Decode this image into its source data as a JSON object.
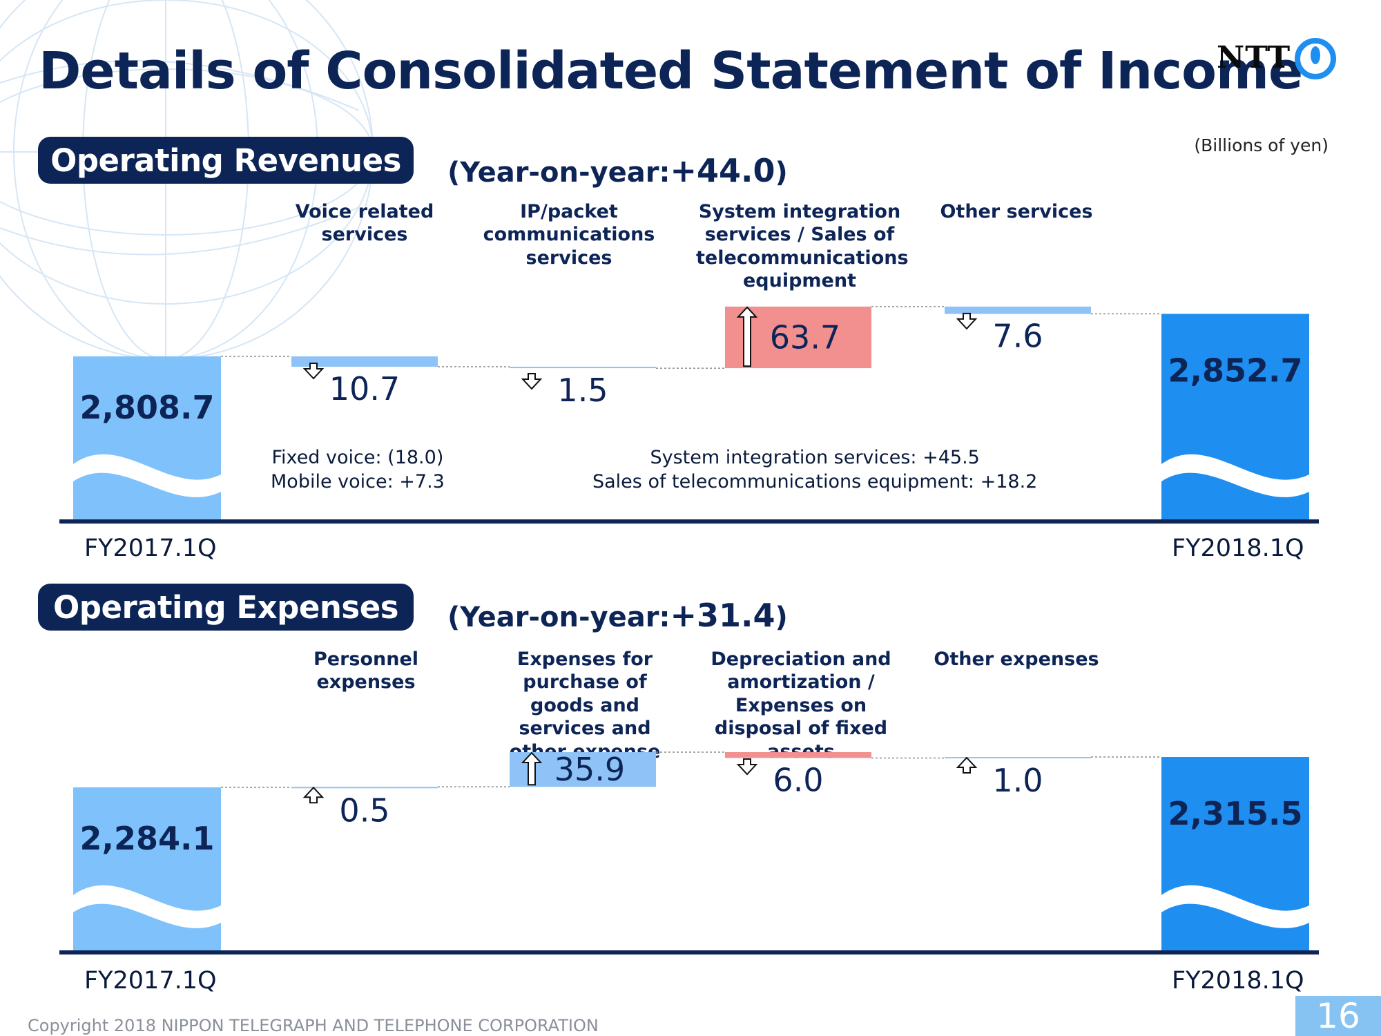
{
  "title": "Details of Consolidated Statement of Income",
  "logo_text": "NTT",
  "unit": "(Billions of yen)",
  "page_number": "16",
  "copyright": "Copyright 2018 NIPPON TELEGRAPH AND TELEPHONE CORPORATION",
  "colors": {
    "navy": "#0d2456",
    "light_blue": "#8fc3f7",
    "bar_blue": "#7fc2fb",
    "bar_blue_dark": "#1e8ef0",
    "increase_red": "#f28f8f"
  },
  "revenues": {
    "label": "Operating Revenues",
    "yoy_prefix": "(Year-on-year:",
    "yoy_value": "+44.0",
    "yoy_suffix": ")",
    "notes_left": [
      "Fixed voice: (18.0)",
      "Mobile voice: +7.3"
    ],
    "notes_right": [
      "System integration services: +45.5",
      "Sales of telecommunications equipment: +18.2"
    ]
  },
  "expenses": {
    "label": "Operating Expenses",
    "yoy_prefix": "(Year-on-year:",
    "yoy_value": "+31.4",
    "yoy_suffix": ")"
  },
  "chart_data": [
    {
      "type": "bar",
      "subtype": "waterfall",
      "title": "Operating Revenues",
      "categories": [
        "FY2017.1Q",
        "Voice related services",
        "IP/packet communications services",
        "System integration services / Sales of telecommunications equipment",
        "Other services",
        "FY2018.1Q"
      ],
      "start": {
        "label": "FY2017.1Q",
        "value": 2808.7,
        "display": "2,808.7"
      },
      "steps": [
        {
          "category": "Voice related services",
          "value": -10.7,
          "display": "10.7",
          "direction": "down",
          "color": "#8fc3f7"
        },
        {
          "category": "IP/packet communications services",
          "value": -1.5,
          "display": "1.5",
          "direction": "down",
          "color": "#8fc3f7"
        },
        {
          "category": "System integration services / Sales of telecommunications equipment",
          "value": 63.7,
          "display": "63.7",
          "direction": "up",
          "color": "#f28f8f"
        },
        {
          "category": "Other services",
          "value": -7.6,
          "display": "7.6",
          "direction": "down",
          "color": "#8fc3f7"
        }
      ],
      "end": {
        "label": "FY2018.1Q",
        "value": 2852.7,
        "display": "2,852.7"
      },
      "ylabel": "(Billions of yen)"
    },
    {
      "type": "bar",
      "subtype": "waterfall",
      "title": "Operating Expenses",
      "categories": [
        "FY2017.1Q",
        "Personnel expenses",
        "Expenses for purchase of goods and services and other expense",
        "Depreciation and amortization / Expenses on disposal of fixed assets",
        "Other expenses",
        "FY2018.1Q"
      ],
      "start": {
        "label": "FY2017.1Q",
        "value": 2284.1,
        "display": "2,284.1"
      },
      "steps": [
        {
          "category": "Personnel expenses",
          "value": 0.5,
          "display": "0.5",
          "direction": "up",
          "color": "#8fc3f7"
        },
        {
          "category": "Expenses for purchase of goods and services and other expense",
          "value": 35.9,
          "display": "35.9",
          "direction": "up",
          "color": "#8fc3f7"
        },
        {
          "category": "Depreciation and amortization / Expenses on disposal of fixed assets",
          "value": -6.0,
          "display": "6.0",
          "direction": "down",
          "color": "#f28f8f"
        },
        {
          "category": "Other expenses",
          "value": 1.0,
          "display": "1.0",
          "direction": "up",
          "color": "#8fc3f7"
        }
      ],
      "end": {
        "label": "FY2018.1Q",
        "value": 2315.5,
        "display": "2,315.5"
      },
      "ylabel": "(Billions of yen)"
    }
  ]
}
